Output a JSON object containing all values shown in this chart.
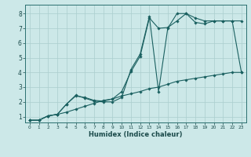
{
  "xlabel": "Humidex (Indice chaleur)",
  "bg_color": "#cce8e8",
  "grid_color": "#aacece",
  "line_color": "#1a6060",
  "xlim": [
    -0.5,
    23.5
  ],
  "ylim": [
    0.6,
    8.6
  ],
  "xticks": [
    0,
    1,
    2,
    3,
    4,
    5,
    6,
    7,
    8,
    9,
    10,
    11,
    12,
    13,
    14,
    15,
    16,
    17,
    18,
    19,
    20,
    21,
    22,
    23
  ],
  "yticks": [
    1,
    2,
    3,
    4,
    5,
    6,
    7,
    8
  ],
  "line1_x": [
    0,
    1,
    2,
    3,
    4,
    5,
    6,
    7,
    8,
    9,
    10,
    11,
    12,
    13,
    14,
    15,
    16,
    17,
    18,
    19,
    20,
    21,
    22,
    23
  ],
  "line1_y": [
    0.75,
    0.75,
    1.05,
    1.15,
    1.85,
    2.4,
    2.3,
    2.1,
    2.05,
    2.2,
    2.7,
    4.05,
    5.1,
    7.7,
    7.0,
    7.05,
    7.5,
    8.0,
    7.7,
    7.5,
    7.5,
    7.5,
    7.5,
    7.5
  ],
  "line2_x": [
    0,
    1,
    2,
    3,
    4,
    5,
    6,
    7,
    8,
    9,
    10,
    11,
    12,
    13,
    14,
    15,
    16,
    17,
    18,
    19,
    20,
    21,
    22,
    23
  ],
  "line2_y": [
    0.75,
    0.75,
    1.05,
    1.15,
    1.85,
    2.45,
    2.25,
    2.05,
    2.0,
    2.0,
    2.3,
    4.2,
    5.25,
    7.8,
    2.7,
    7.0,
    8.0,
    8.0,
    7.4,
    7.3,
    7.5,
    7.5,
    7.5,
    4.0
  ],
  "line3_x": [
    0,
    1,
    2,
    3,
    4,
    5,
    6,
    7,
    8,
    9,
    10,
    11,
    12,
    13,
    14,
    15,
    16,
    17,
    18,
    19,
    20,
    21,
    22,
    23
  ],
  "line3_y": [
    0.75,
    0.75,
    1.05,
    1.15,
    1.3,
    1.5,
    1.7,
    1.9,
    2.1,
    2.2,
    2.4,
    2.55,
    2.7,
    2.9,
    3.0,
    3.2,
    3.4,
    3.5,
    3.6,
    3.7,
    3.8,
    3.9,
    4.0,
    4.0
  ],
  "tick_fontsize_x": 4.2,
  "tick_fontsize_y": 5.5,
  "xlabel_fontsize": 6.0,
  "linewidth": 0.8,
  "markersize": 1.8
}
